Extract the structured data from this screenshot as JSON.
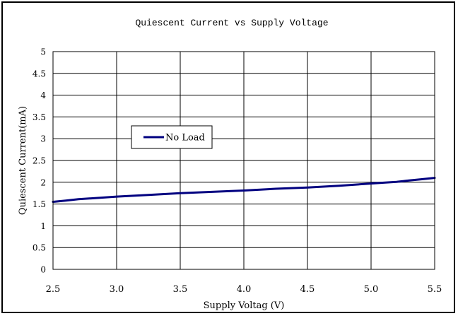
{
  "chart_data": {
    "type": "line",
    "title": "Quiescent Current vs Supply Voltage",
    "xlabel": "Supply Voltag (V)",
    "ylabel": "Quiescent Current(mA)",
    "xlim": [
      2.5,
      5.5
    ],
    "ylim": [
      0,
      5
    ],
    "x_ticks": [
      2.5,
      3.0,
      3.5,
      4.0,
      4.5,
      5.0,
      5.5
    ],
    "x_tick_labels": [
      "2.5",
      "3.0",
      "3.5",
      "4.0",
      "4.5",
      "5.0",
      "5.5"
    ],
    "y_ticks": [
      0,
      0.5,
      1,
      1.5,
      2,
      2.5,
      3,
      3.5,
      4,
      4.5,
      5
    ],
    "y_tick_labels": [
      "0",
      "0.5",
      "1",
      "1.5",
      "2",
      "2.5",
      "3",
      "3.5",
      "4",
      "4.5",
      "5"
    ],
    "grid": true,
    "legend_position": "upper-left",
    "series": [
      {
        "name": "No Load",
        "color": "#000080",
        "x": [
          2.5,
          2.6,
          2.7,
          2.8,
          2.9,
          3.0,
          3.25,
          3.5,
          3.75,
          4.0,
          4.25,
          4.5,
          4.75,
          5.0,
          5.1,
          5.2,
          5.3,
          5.4,
          5.5
        ],
        "y": [
          1.55,
          1.58,
          1.61,
          1.63,
          1.65,
          1.67,
          1.71,
          1.75,
          1.78,
          1.81,
          1.85,
          1.88,
          1.92,
          1.97,
          1.99,
          2.01,
          2.04,
          2.07,
          2.1
        ]
      }
    ]
  }
}
